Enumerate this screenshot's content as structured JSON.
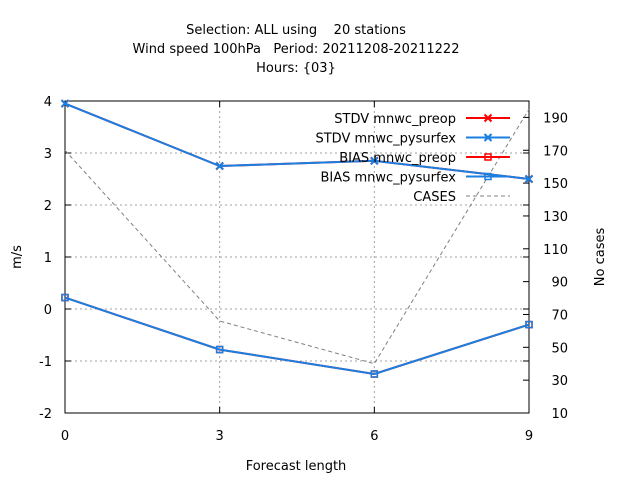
{
  "chart_data": {
    "type": "line",
    "title_lines": [
      "Selection: ALL using    20 stations",
      "Wind speed 100hPa   Period: 20211208-20211222",
      "Hours: {03}"
    ],
    "xlabel": "Forecast length",
    "ylabel": "m/s",
    "y2label": "No cases",
    "x_ticks": [
      "0",
      "3",
      "6",
      "9"
    ],
    "xlim": [
      0,
      9
    ],
    "ylim": [
      -2,
      4
    ],
    "y_ticks": [
      "-2",
      "-1",
      "0",
      "1",
      "2",
      "3",
      "4"
    ],
    "y2lim": [
      10,
      200
    ],
    "y2_ticks": [
      "10",
      "30",
      "50",
      "70",
      "90",
      "110",
      "130",
      "150",
      "170",
      "190"
    ],
    "grid": true,
    "legend_position": "top-right",
    "series": [
      {
        "name": "STDV mnwc_preop",
        "color": "#ff0000",
        "marker": "x",
        "axis": "y",
        "x": [
          0,
          3,
          6,
          9
        ],
        "values": [
          3.95,
          2.75,
          2.85,
          2.5
        ]
      },
      {
        "name": "STDV mnwc_pysurfex",
        "color": "#1a7fe0",
        "marker": "x",
        "axis": "y",
        "x": [
          0,
          3,
          6,
          9
        ],
        "values": [
          3.95,
          2.75,
          2.85,
          2.5
        ]
      },
      {
        "name": "BIAS mnwc_preop",
        "color": "#ff0000",
        "marker": "square",
        "axis": "y",
        "x": [
          0,
          3,
          6,
          9
        ],
        "values": [
          0.22,
          -0.78,
          -1.25,
          -0.3
        ]
      },
      {
        "name": "BIAS mnwc_pysurfex",
        "color": "#1a7fe0",
        "marker": "square",
        "axis": "y",
        "x": [
          0,
          3,
          6,
          9
        ],
        "values": [
          0.22,
          -0.78,
          -1.25,
          -0.3
        ]
      },
      {
        "name": "CASES",
        "color": "#808080",
        "marker": "none",
        "dash": true,
        "axis": "y2",
        "x": [
          0,
          3,
          6,
          9
        ],
        "values": [
          170,
          66,
          40,
          195
        ]
      }
    ]
  }
}
